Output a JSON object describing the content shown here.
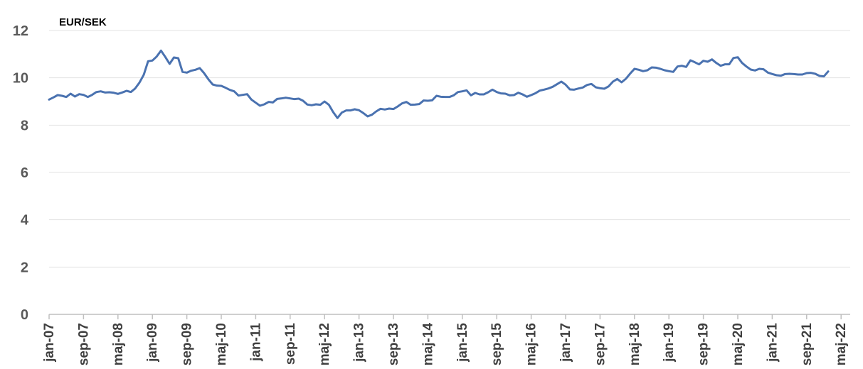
{
  "chart_data": {
    "type": "line",
    "title": "EUR/SEK",
    "xlabel": "",
    "ylabel": "",
    "ylim": [
      0,
      12
    ],
    "y_ticks": [
      0,
      2,
      4,
      6,
      8,
      10,
      12
    ],
    "x_tick_labels": [
      "jan-07",
      "sep-07",
      "maj-08",
      "jan-09",
      "sep-09",
      "maj-10",
      "jan-11",
      "sep-11",
      "maj-12",
      "jan-13",
      "sep-13",
      "maj-14",
      "jan-15",
      "sep-15",
      "maj-16",
      "jan-17",
      "sep-17",
      "maj-18",
      "jan-19",
      "sep-19",
      "maj-20",
      "jan-21",
      "sep-21",
      "maj-22"
    ],
    "x_start": "jan-07",
    "grid": true,
    "colors": {
      "line": "#4a72b0",
      "grid": "#e3e3e3",
      "axis": "#bfbfbf"
    },
    "series": [
      {
        "name": "",
        "values": [
          9.08,
          9.17,
          9.27,
          9.24,
          9.19,
          9.33,
          9.21,
          9.31,
          9.28,
          9.19,
          9.28,
          9.4,
          9.43,
          9.38,
          9.39,
          9.37,
          9.32,
          9.38,
          9.45,
          9.4,
          9.55,
          9.8,
          10.13,
          10.7,
          10.73,
          10.9,
          11.15,
          10.88,
          10.59,
          10.86,
          10.83,
          10.25,
          10.22,
          10.3,
          10.34,
          10.41,
          10.2,
          9.94,
          9.72,
          9.67,
          9.66,
          9.58,
          9.49,
          9.43,
          9.25,
          9.28,
          9.31,
          9.08,
          8.95,
          8.82,
          8.88,
          8.98,
          8.96,
          9.11,
          9.13,
          9.16,
          9.13,
          9.1,
          9.12,
          9.03,
          8.87,
          8.84,
          8.88,
          8.86,
          9.0,
          8.86,
          8.55,
          8.3,
          8.53,
          8.62,
          8.62,
          8.67,
          8.63,
          8.51,
          8.37,
          8.44,
          8.58,
          8.69,
          8.66,
          8.7,
          8.68,
          8.79,
          8.92,
          8.98,
          8.86,
          8.87,
          8.89,
          9.04,
          9.03,
          9.05,
          9.24,
          9.2,
          9.19,
          9.19,
          9.26,
          9.4,
          9.43,
          9.47,
          9.26,
          9.36,
          9.3,
          9.3,
          9.39,
          9.5,
          9.4,
          9.34,
          9.33,
          9.26,
          9.27,
          9.37,
          9.3,
          9.2,
          9.27,
          9.35,
          9.46,
          9.5,
          9.55,
          9.62,
          9.73,
          9.84,
          9.71,
          9.51,
          9.5,
          9.55,
          9.59,
          9.7,
          9.74,
          9.6,
          9.56,
          9.54,
          9.64,
          9.84,
          9.95,
          9.81,
          9.96,
          10.18,
          10.38,
          10.34,
          10.28,
          10.32,
          10.44,
          10.43,
          10.38,
          10.32,
          10.28,
          10.25,
          10.48,
          10.51,
          10.46,
          10.74,
          10.66,
          10.57,
          10.72,
          10.68,
          10.78,
          10.63,
          10.51,
          10.57,
          10.57,
          10.84,
          10.87,
          10.63,
          10.48,
          10.35,
          10.31,
          10.38,
          10.36,
          10.22,
          10.16,
          10.11,
          10.09,
          10.16,
          10.17,
          10.16,
          10.14,
          10.14,
          10.2,
          10.21,
          10.17,
          10.08,
          10.06,
          10.27
        ]
      }
    ]
  }
}
